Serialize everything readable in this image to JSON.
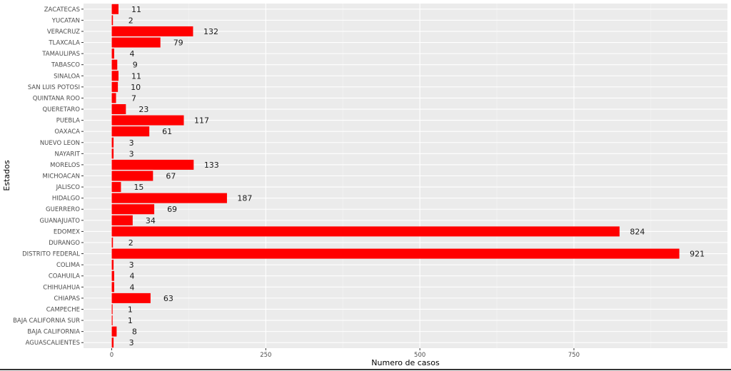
{
  "chart_data": {
    "type": "bar",
    "orientation": "horizontal",
    "xlabel": "Numero de casos",
    "ylabel": "Estados",
    "xlim": [
      -45,
      1000
    ],
    "xticks": [
      0,
      250,
      500,
      750
    ],
    "xtick_labels": [
      "0",
      "250",
      "500",
      "750"
    ],
    "grid": true,
    "bar_color": "#FF0000",
    "panel_color": "#EBEBEB",
    "categories": [
      "ZACATECAS",
      "YUCATAN",
      "VERACRUZ",
      "TLAXCALA",
      "TAMAULIPAS",
      "TABASCO",
      "SINALOA",
      "SAN LUIS POTOSI",
      "QUINTANA ROO",
      "QUERETARO",
      "PUEBLA",
      "OAXACA",
      "NUEVO LEON",
      "NAYARIT",
      "MORELOS",
      "MICHOACAN",
      "JALISCO",
      "HIDALGO",
      "GUERRERO",
      "GUANAJUATO",
      "EDOMEX",
      "DURANGO",
      "DISTRITO FEDERAL",
      "COLIMA",
      "COAHUILA",
      "CHIHUAHUA",
      "CHIAPAS",
      "CAMPECHE",
      "BAJA CALIFORNIA SUR",
      "BAJA CALIFORNIA",
      "AGUASCALIENTES"
    ],
    "values": [
      11,
      2,
      132,
      79,
      4,
      9,
      11,
      10,
      7,
      23,
      117,
      61,
      3,
      3,
      133,
      67,
      15,
      187,
      69,
      34,
      824,
      2,
      921,
      3,
      4,
      4,
      63,
      1,
      1,
      8,
      3
    ]
  }
}
